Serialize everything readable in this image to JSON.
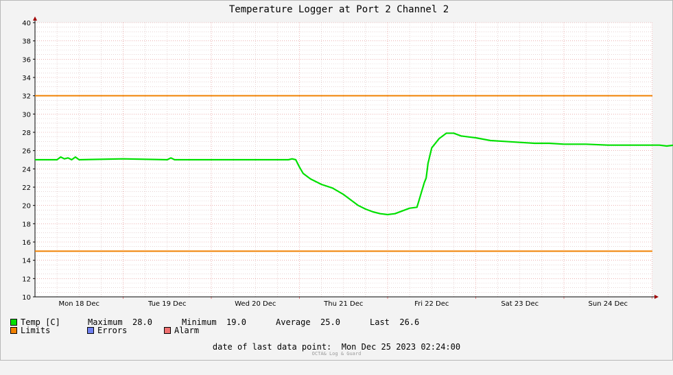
{
  "chart_data": {
    "type": "line",
    "title": "Temperature Logger at Port 2 Channel 2",
    "xlabel": "",
    "ylabel": "",
    "ylim": [
      10,
      40
    ],
    "y_ticks": [
      10,
      12,
      14,
      16,
      18,
      20,
      22,
      24,
      26,
      28,
      30,
      32,
      34,
      36,
      38,
      40
    ],
    "x_ticks": [
      "Mon 18 Dec",
      "Tue 19 Dec",
      "Wed 20 Dec",
      "Thu 21 Dec",
      "Fri 22 Dec",
      "Sat 23 Dec",
      "Sun 24 Dec"
    ],
    "x_range_days": [
      "Mon 18 Dec 00:00",
      "Mon 25 Dec 02:24"
    ],
    "grid": true,
    "limits": {
      "upper": 32,
      "lower": 15
    },
    "series": [
      {
        "name": "Temp [C]",
        "color": "#00e000",
        "x_hours": [
          0,
          6,
          7,
          8,
          9,
          10,
          11,
          12,
          24,
          36,
          37,
          38,
          48,
          60,
          69,
          70,
          71,
          72,
          73,
          75,
          78,
          81,
          84,
          86,
          88,
          90,
          92,
          94,
          96,
          98,
          100,
          102,
          104,
          106,
          106.5,
          107,
          108,
          110,
          112,
          114,
          116,
          118,
          120,
          124,
          128,
          132,
          136,
          140,
          144,
          150,
          156,
          162,
          168,
          170,
          172,
          174
        ],
        "values": [
          25.0,
          25.0,
          25.3,
          25.1,
          25.2,
          25.0,
          25.3,
          25.0,
          25.1,
          25.0,
          25.2,
          25.0,
          25.0,
          25.0,
          25.0,
          25.1,
          25.0,
          24.2,
          23.5,
          22.9,
          22.3,
          21.9,
          21.2,
          20.6,
          20.0,
          19.6,
          19.3,
          19.1,
          19.0,
          19.1,
          19.4,
          19.7,
          19.8,
          22.5,
          23.0,
          24.6,
          26.3,
          27.3,
          27.9,
          27.9,
          27.6,
          27.5,
          27.4,
          27.1,
          27.0,
          26.9,
          26.8,
          26.8,
          26.7,
          26.7,
          26.6,
          26.6,
          26.6,
          26.6,
          26.5,
          26.6
        ]
      }
    ],
    "legend": {
      "temp_label": "Temp [C]",
      "maximum_label": "Maximum",
      "maximum_value": "28.0",
      "minimum_label": "Minimum",
      "minimum_value": "19.0",
      "average_label": "Average",
      "average_value": "25.0",
      "last_label": "Last",
      "last_value": "26.6",
      "limits_label": "Limits",
      "errors_label": "Errors",
      "alarm_label": "Alarm"
    },
    "colors": {
      "temp": "#00e000",
      "limits": "#f08000",
      "errors": "#7080f0",
      "alarm": "#f07070",
      "grid_major": "#e08080",
      "grid_minor": "#d8b8b8"
    }
  },
  "footer": {
    "label": "date of last data point:",
    "value": "Mon Dec 25 2023 02:24:00"
  },
  "credit": "OCTA& Log & Guard"
}
